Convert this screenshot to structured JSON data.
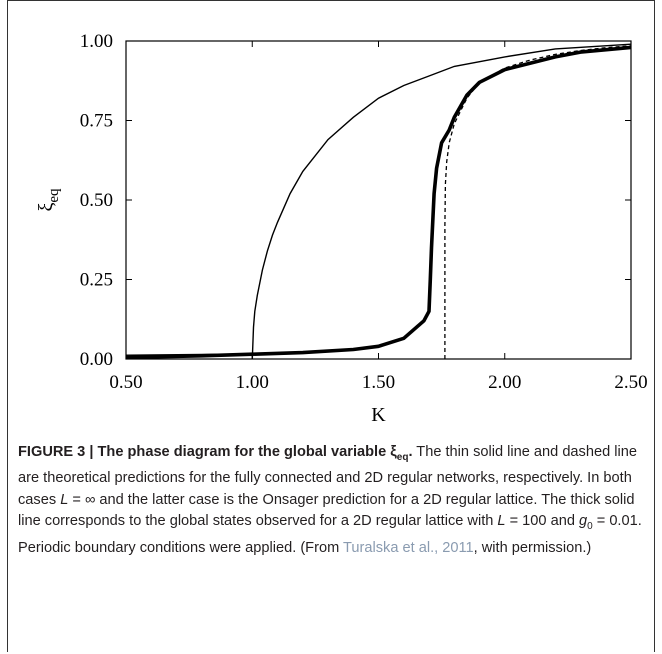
{
  "chart_data": {
    "type": "line",
    "xlabel": "K",
    "ylabel_base": "ξ",
    "ylabel_sub": "eq",
    "xlim": [
      0.5,
      2.5
    ],
    "ylim": [
      0.0,
      1.0
    ],
    "xticks": [
      "0.50",
      "1.00",
      "1.50",
      "2.00",
      "2.50"
    ],
    "yticks": [
      "0.00",
      "0.25",
      "0.50",
      "0.75",
      "1.00"
    ],
    "series": [
      {
        "style": "thin-solid",
        "x": [
          0.5,
          1.0,
          1.0,
          1.005,
          1.01,
          1.02,
          1.04,
          1.06,
          1.08,
          1.1,
          1.15,
          1.2,
          1.3,
          1.4,
          1.5,
          1.6,
          1.7,
          1.8,
          2.0,
          2.2,
          2.5
        ],
        "y": [
          0.012,
          0.016,
          0.0,
          0.1,
          0.15,
          0.2,
          0.28,
          0.34,
          0.39,
          0.43,
          0.52,
          0.59,
          0.69,
          0.76,
          0.82,
          0.86,
          0.89,
          0.92,
          0.95,
          0.975,
          0.99
        ]
      },
      {
        "style": "dashed",
        "x": [
          1.763,
          1.763,
          1.765,
          1.77,
          1.78,
          1.8,
          1.85,
          1.9,
          2.0,
          2.1,
          2.2,
          2.3,
          2.4,
          2.5
        ],
        "y": [
          0.0,
          0.42,
          0.55,
          0.62,
          0.68,
          0.74,
          0.82,
          0.87,
          0.915,
          0.94,
          0.958,
          0.97,
          0.979,
          0.985
        ]
      },
      {
        "style": "thick-solid",
        "x": [
          0.5,
          0.8,
          1.0,
          1.2,
          1.4,
          1.5,
          1.6,
          1.68,
          1.7,
          1.705,
          1.71,
          1.72,
          1.73,
          1.75,
          1.78,
          1.8,
          1.85,
          1.9,
          2.0,
          2.1,
          2.2,
          2.3,
          2.5
        ],
        "y": [
          0.005,
          0.01,
          0.015,
          0.02,
          0.03,
          0.04,
          0.065,
          0.12,
          0.15,
          0.25,
          0.35,
          0.52,
          0.6,
          0.68,
          0.72,
          0.76,
          0.83,
          0.87,
          0.91,
          0.93,
          0.95,
          0.965,
          0.98
        ]
      }
    ]
  },
  "caption": {
    "figure_label": "FIGURE 3 | The phase diagram for the global variable ξ",
    "figure_label_sub": "eq",
    "figure_label_end": ".",
    "text_1": " The thin solid line and dashed line are theoretical predictions for the fully connected and 2D regular networks, respectively. In both cases ",
    "L1": "L",
    "eq_inf": " = ∞ and the latter case is the Onsager prediction for a 2D regular lattice. The thick solid line corresponds to the global states observed for a 2D regular lattice with ",
    "L2": "L",
    "eq_100": " = 100 and ",
    "g": "g",
    "g_sub": "0",
    "eq_g": " = 0.01. Periodic boundary conditions were applied. (From ",
    "citation": "Turalska et al., 2011",
    "text_end": ", with permission.)"
  }
}
